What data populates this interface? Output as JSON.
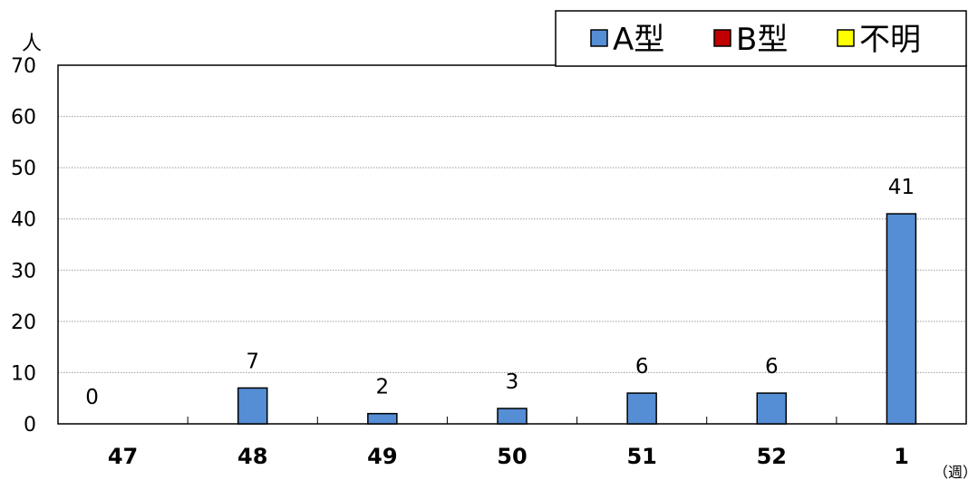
{
  "chart_data": {
    "type": "bar",
    "categories": [
      "47",
      "48",
      "49",
      "50",
      "51",
      "52",
      "1"
    ],
    "series": [
      {
        "name": "A型",
        "values": [
          0,
          7,
          2,
          3,
          6,
          6,
          41
        ],
        "color": "#558ED5"
      },
      {
        "name": "B型",
        "values": [
          0,
          0,
          0,
          0,
          0,
          0,
          0
        ],
        "color": "#C00000"
      },
      {
        "name": "不明",
        "values": [
          0,
          0,
          0,
          0,
          0,
          0,
          0
        ],
        "color": "#FFFF00"
      }
    ],
    "data_labels": [
      "0",
      "7",
      "2",
      "3",
      "6",
      "6",
      "41"
    ],
    "ylabel": "人",
    "xlabel": "（週）",
    "ylim": [
      0,
      70
    ],
    "yticks": [
      0,
      10,
      20,
      30,
      40,
      50,
      60,
      70
    ],
    "grid": true,
    "legend_position": "top-right"
  }
}
